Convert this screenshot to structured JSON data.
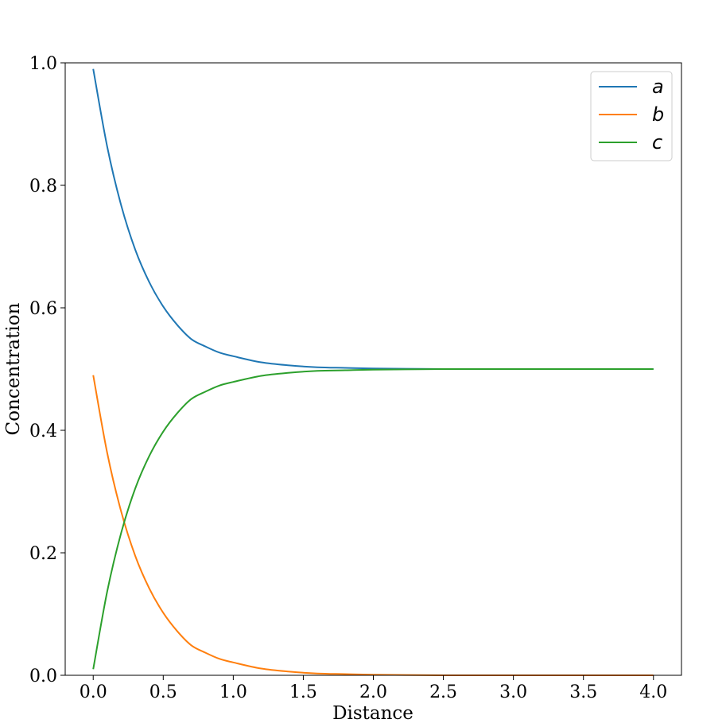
{
  "chart_data": {
    "type": "line",
    "xlabel": "Distance",
    "ylabel": "Concentration",
    "xlim": [
      -0.2,
      4.2
    ],
    "ylim": [
      0.0,
      1.0
    ],
    "x_ticks": [
      0.0,
      0.5,
      1.0,
      1.5,
      2.0,
      2.5,
      3.0,
      3.5,
      4.0
    ],
    "y_ticks": [
      0.0,
      0.2,
      0.4,
      0.6,
      0.8,
      1.0
    ],
    "x_tick_labels": [
      "0.0",
      "0.5",
      "1.0",
      "1.5",
      "2.0",
      "2.5",
      "3.0",
      "3.5",
      "4.0"
    ],
    "y_tick_labels": [
      "0.0",
      "0.2",
      "0.4",
      "0.6",
      "0.8",
      "1.0"
    ],
    "grid": false,
    "legend_position": "top-right",
    "x": [
      0.0,
      0.1,
      0.2,
      0.3,
      0.4,
      0.5,
      0.6,
      0.7,
      0.8,
      0.9,
      1.0,
      1.2,
      1.4,
      1.6,
      1.8,
      2.0,
      2.5,
      3.0,
      3.5,
      4.0
    ],
    "series": [
      {
        "name": "a",
        "color": "#1f77b4",
        "values": [
          0.99,
          0.863,
          0.767,
          0.695,
          0.642,
          0.602,
          0.572,
          0.549,
          0.537,
          0.527,
          0.521,
          0.511,
          0.506,
          0.503,
          0.502,
          0.501,
          0.5,
          0.5,
          0.5,
          0.5
        ]
      },
      {
        "name": "b",
        "color": "#ff7f0e",
        "values": [
          0.49,
          0.363,
          0.267,
          0.195,
          0.142,
          0.102,
          0.072,
          0.049,
          0.037,
          0.027,
          0.021,
          0.011,
          0.006,
          0.003,
          0.002,
          0.001,
          0.0,
          0.0,
          0.0,
          0.0
        ]
      },
      {
        "name": "c",
        "color": "#2ca02c",
        "values": [
          0.01,
          0.137,
          0.233,
          0.305,
          0.358,
          0.398,
          0.428,
          0.451,
          0.463,
          0.473,
          0.479,
          0.489,
          0.494,
          0.497,
          0.498,
          0.499,
          0.5,
          0.5,
          0.5,
          0.5
        ]
      }
    ]
  }
}
